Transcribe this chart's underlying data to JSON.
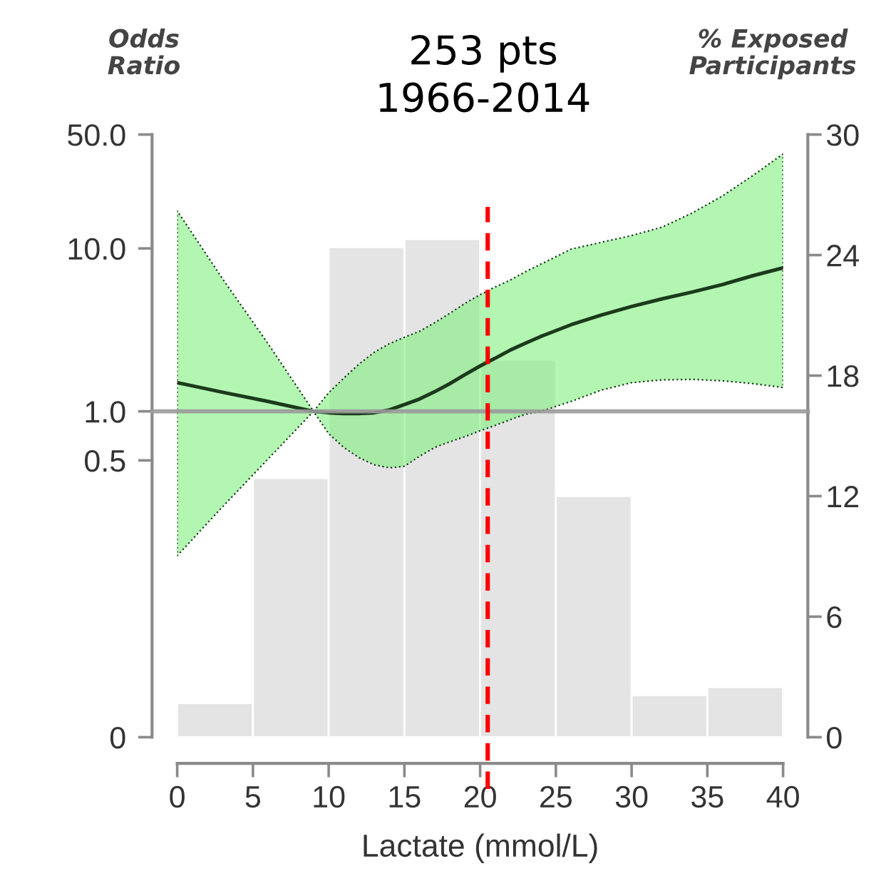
{
  "chart_data": {
    "type": "line",
    "title": "253 pts\n1966-2014",
    "xlabel": "Lactate (mmol/L)",
    "ylabel": "Odds\nRatio",
    "y2label": "% Exposed\nParticipants",
    "xlim": [
      0,
      40
    ],
    "xticks": [
      0,
      5,
      10,
      15,
      20,
      25,
      30,
      35,
      40
    ],
    "log": "y",
    "ylim": [
      0.01,
      50
    ],
    "yticks": [
      {
        "value": 0.01,
        "label": "0"
      },
      {
        "value": 0.5,
        "label": "0.5"
      },
      {
        "value": 1,
        "label": "1.0"
      },
      {
        "value": 10,
        "label": "10.0"
      },
      {
        "value": 50,
        "label": "50.0"
      }
    ],
    "y2lim": [
      0,
      30
    ],
    "y2ticks": [
      0,
      6,
      12,
      18,
      24,
      30
    ],
    "series": [
      {
        "type": "histogram",
        "axis": "y2",
        "color": "#e4e4e4",
        "bins": [
          0,
          5,
          10,
          15,
          20,
          25,
          30,
          35,
          40
        ],
        "values": [
          1.7,
          12.9,
          24.4,
          24.8,
          18.8,
          12.0,
          2.1,
          2.5
        ]
      },
      {
        "axis": "y",
        "color": "#1c3a1c",
        "x": [
          0,
          3,
          6,
          9,
          10,
          11,
          12,
          13,
          14,
          15,
          16,
          17,
          18,
          19,
          20,
          21,
          22,
          23,
          24,
          26,
          28,
          30,
          32,
          34,
          36,
          38,
          40
        ],
        "values": [
          1.5,
          1.31,
          1.15,
          1.0,
          0.98,
          0.97,
          0.97,
          0.98,
          1.02,
          1.1,
          1.19,
          1.32,
          1.48,
          1.68,
          1.9,
          2.12,
          2.38,
          2.62,
          2.88,
          3.4,
          3.9,
          4.4,
          4.9,
          5.4,
          6.0,
          6.8,
          7.6
        ],
        "lower": [
          0.13,
          0.26,
          0.51,
          1.0,
          0.73,
          0.6,
          0.52,
          0.47,
          0.45,
          0.46,
          0.53,
          0.6,
          0.65,
          0.7,
          0.76,
          0.82,
          0.89,
          0.96,
          1.0,
          1.15,
          1.35,
          1.5,
          1.56,
          1.57,
          1.54,
          1.48,
          1.4
        ],
        "upper": [
          17,
          6.5,
          2.6,
          1.0,
          1.3,
          1.6,
          1.95,
          2.3,
          2.6,
          2.85,
          3.1,
          3.5,
          4.0,
          4.6,
          5.2,
          5.8,
          6.4,
          7.2,
          8.0,
          9.9,
          10.9,
          12.0,
          13.5,
          16.5,
          21,
          28,
          38
        ]
      }
    ],
    "ref_lines": [
      {
        "axis": "y",
        "value": 1,
        "color": "#9a9a9a",
        "line_style": "solid"
      },
      {
        "axis": "x",
        "value": 20.5,
        "color": "#ff0000",
        "line_style": "dashed"
      }
    ]
  }
}
